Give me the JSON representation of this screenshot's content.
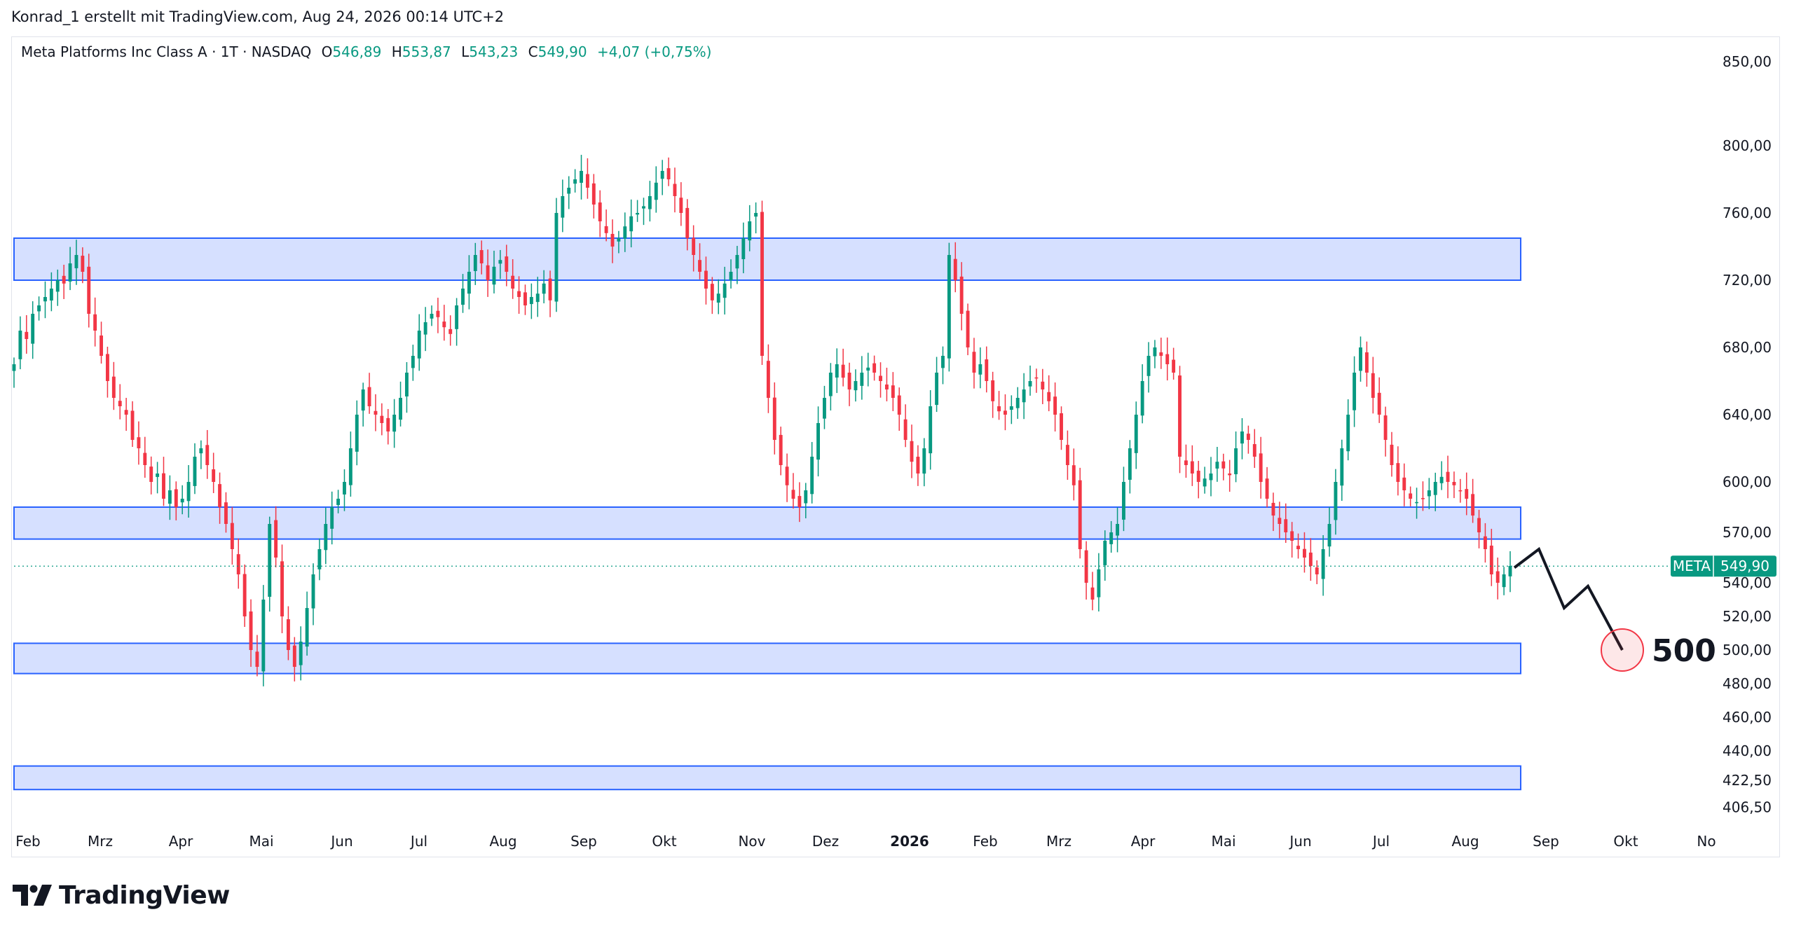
{
  "credit": "Konrad_1 erstellt mit TradingView.com, Aug 24, 2026 00:14 UTC+2",
  "legend": {
    "title": "Meta Platforms Inc Class A · 1T · NASDAQ",
    "o_label": "O",
    "o_value": "546,89",
    "h_label": "H",
    "h_value": "553,87",
    "l_label": "L",
    "l_value": "543,23",
    "c_label": "C",
    "c_value": "549,90",
    "change": "+4,07 (+0,75%)"
  },
  "logo": {
    "text": "TradingView",
    "icon": "tradingview-logo-icon"
  },
  "colors": {
    "up": "#089981",
    "down": "#f23645",
    "zone_fill": "#d6e0ff",
    "zone_border": "#2962ff",
    "badge": "#089981",
    "target_circle": "#f23645"
  },
  "chart_data": {
    "type": "candlestick",
    "symbol": "META",
    "ylim": [
      395,
      865
    ],
    "y_ticks": [
      {
        "value": 850,
        "label": "850,00"
      },
      {
        "value": 800,
        "label": "800,00"
      },
      {
        "value": 760,
        "label": "760,00"
      },
      {
        "value": 720,
        "label": "720,00"
      },
      {
        "value": 680,
        "label": "680,00"
      },
      {
        "value": 640,
        "label": "640,00"
      },
      {
        "value": 600,
        "label": "600,00"
      },
      {
        "value": 570,
        "label": "570,00"
      },
      {
        "value": 540,
        "label": "540,00"
      },
      {
        "value": 520,
        "label": "520,00"
      },
      {
        "value": 500,
        "label": "500,00"
      },
      {
        "value": 480,
        "label": "480,00"
      },
      {
        "value": 460,
        "label": "460,00"
      },
      {
        "value": 440,
        "label": "440,00"
      },
      {
        "value": 422.5,
        "label": "422,50"
      },
      {
        "value": 406.5,
        "label": "406,50"
      }
    ],
    "x_ticks": [
      {
        "label": "Feb",
        "bold": false
      },
      {
        "label": "Mrz",
        "bold": false
      },
      {
        "label": "Apr",
        "bold": false
      },
      {
        "label": "Mai",
        "bold": false
      },
      {
        "label": "Jun",
        "bold": false
      },
      {
        "label": "Jul",
        "bold": false
      },
      {
        "label": "Aug",
        "bold": false
      },
      {
        "label": "Sep",
        "bold": false
      },
      {
        "label": "Okt",
        "bold": false
      },
      {
        "label": "Nov",
        "bold": false
      },
      {
        "label": "Dez",
        "bold": false
      },
      {
        "label": "2026",
        "bold": true
      },
      {
        "label": "Feb",
        "bold": false
      },
      {
        "label": "Mrz",
        "bold": false
      },
      {
        "label": "Apr",
        "bold": false
      },
      {
        "label": "Mai",
        "bold": false
      },
      {
        "label": "Jun",
        "bold": false
      },
      {
        "label": "Jul",
        "bold": false
      },
      {
        "label": "Aug",
        "bold": false
      },
      {
        "label": "Sep",
        "bold": false
      },
      {
        "label": "Okt",
        "bold": false
      },
      {
        "label": "No",
        "bold": false
      }
    ],
    "closes": [
      670,
      690,
      685,
      700,
      705,
      710,
      715,
      720,
      718,
      730,
      735,
      725,
      700,
      690,
      675,
      660,
      650,
      645,
      640,
      625,
      620,
      610,
      600,
      605,
      590,
      595,
      585,
      590,
      600,
      615,
      620,
      610,
      600,
      585,
      575,
      560,
      545,
      520,
      500,
      490,
      530,
      575,
      555,
      520,
      500,
      490,
      505,
      525,
      545,
      560,
      575,
      585,
      590,
      600,
      620,
      640,
      655,
      645,
      640,
      635,
      630,
      640,
      650,
      665,
      675,
      690,
      695,
      700,
      698,
      692,
      688,
      705,
      715,
      725,
      735,
      730,
      720,
      728,
      732,
      725,
      715,
      710,
      705,
      710,
      712,
      718,
      708,
      760,
      770,
      775,
      780,
      785,
      775,
      765,
      755,
      748,
      740,
      745,
      752,
      758,
      760,
      764,
      770,
      778,
      785,
      780,
      770,
      760,
      745,
      735,
      725,
      715,
      708,
      712,
      718,
      725,
      735,
      745,
      755,
      760,
      675,
      650,
      625,
      610,
      598,
      590,
      585,
      595,
      615,
      635,
      650,
      665,
      670,
      662,
      655,
      660,
      665,
      668,
      665,
      660,
      655,
      650,
      640,
      625,
      612,
      605,
      620,
      645,
      665,
      675,
      735,
      720,
      700,
      680,
      665,
      670,
      660,
      648,
      642,
      640,
      645,
      650,
      655,
      660,
      662,
      655,
      648,
      640,
      625,
      610,
      598,
      560,
      540,
      530,
      548,
      565,
      570,
      575,
      600,
      620,
      640,
      660,
      675,
      680,
      675,
      670,
      665,
      615,
      610,
      605,
      600,
      602,
      605,
      612,
      608,
      604,
      620,
      630,
      625,
      615,
      600,
      590,
      580,
      575,
      570,
      565,
      560,
      555,
      550,
      545,
      560,
      575,
      600,
      620,
      640,
      665,
      680,
      665,
      650,
      640,
      625,
      610,
      600,
      595,
      590,
      588,
      590,
      595,
      600,
      603,
      600,
      598,
      595,
      590,
      580,
      570,
      560,
      545,
      540,
      545,
      550
    ],
    "zones": [
      {
        "from_index": 0,
        "to_index": 1330,
        "low": 720,
        "high": 745
      },
      {
        "from_index": 0,
        "to_index": 1330,
        "low": 566,
        "high": 585
      },
      {
        "from_index": 0,
        "to_index": 1330,
        "low": 486,
        "high": 504
      },
      {
        "from_index": 0,
        "to_index": 1330,
        "low": 417,
        "high": 431
      }
    ],
    "projection": [
      {
        "x_label": "Aug",
        "value": 549
      },
      {
        "x_label": "Sep",
        "value": 560
      },
      {
        "x_label": "Sep",
        "value": 525
      },
      {
        "x_label": "Sep",
        "value": 538
      },
      {
        "x_label": "Okt",
        "value": 500
      }
    ],
    "target": {
      "value": 500,
      "label": "500"
    },
    "last": {
      "symbol": "META",
      "value": 549.9,
      "label": "549,90"
    }
  }
}
